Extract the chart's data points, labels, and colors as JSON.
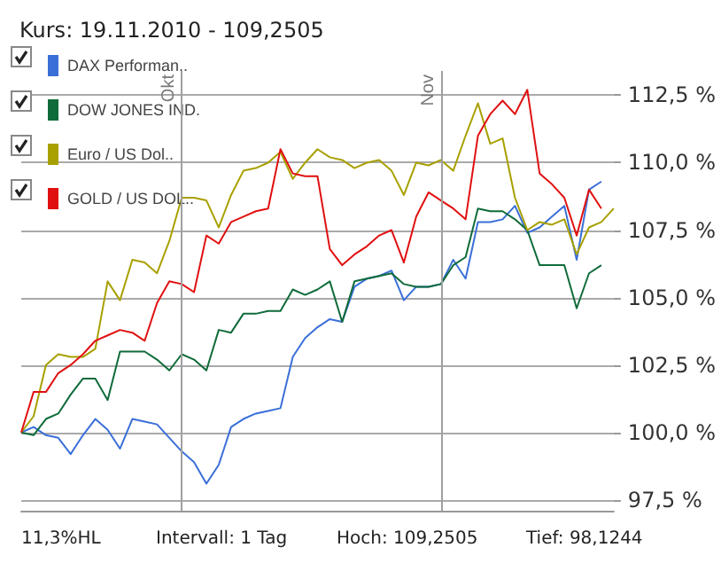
{
  "chart_data": {
    "type": "line",
    "title": "Kurs: 19.11.2010 - 109,2505",
    "annotations": [
      "Okt",
      "Nov",
      "11,3%HL",
      "Intervall: 1 Tag",
      "Hoch: 109,2505",
      "Tief: 98,1244"
    ],
    "categories": [
      null,
      null,
      null,
      null,
      null,
      null,
      null,
      null,
      null,
      null,
      null,
      null,
      null,
      null,
      null,
      null,
      null,
      null,
      null,
      null,
      null,
      null,
      null,
      null,
      null,
      null,
      null,
      null,
      null,
      null,
      null,
      null,
      null,
      null,
      null,
      null,
      null,
      null,
      null,
      null,
      null,
      null,
      null,
      null,
      null,
      null,
      null,
      null,
      null
    ],
    "series": [
      {
        "name": "DAX Performan..",
        "color": "#3a6fd8",
        "values": [
          100.0,
          100.2,
          99.9,
          99.8,
          99.2,
          99.9,
          100.5,
          100.1,
          99.4,
          100.5,
          100.4,
          100.3,
          99.8,
          99.3,
          98.9,
          98.1,
          98.8,
          100.2,
          100.5,
          100.7,
          100.8,
          100.9,
          102.8,
          103.5,
          103.9,
          104.2,
          104.1,
          105.4,
          105.7,
          105.8,
          106.0,
          104.9,
          105.4,
          105.4,
          105.5,
          106.4,
          105.7,
          107.8,
          107.8,
          107.9,
          108.4,
          107.4,
          107.6,
          108.0,
          108.4,
          106.4,
          109.0,
          109.3,
          null
        ]
      },
      {
        "name": "DOW JONES IND.",
        "color": "#0f6b3a",
        "values": [
          100.0,
          99.9,
          100.5,
          100.7,
          101.4,
          102.0,
          102.0,
          101.2,
          103.0,
          103.0,
          103.0,
          102.7,
          102.3,
          102.9,
          102.7,
          102.3,
          103.8,
          103.7,
          104.4,
          104.4,
          104.5,
          104.5,
          105.3,
          105.1,
          105.3,
          105.6,
          104.1,
          105.6,
          105.7,
          105.8,
          105.9,
          105.5,
          105.4,
          105.4,
          105.5,
          106.2,
          106.5,
          108.3,
          108.2,
          108.2,
          107.9,
          107.5,
          106.2,
          106.2,
          106.2,
          104.6,
          105.9,
          106.2,
          null
        ]
      },
      {
        "name": "Euro / US Dol..",
        "color": "#a8a000",
        "values": [
          100.0,
          100.6,
          102.5,
          102.9,
          102.8,
          102.8,
          103.1,
          105.6,
          104.9,
          106.4,
          106.3,
          105.9,
          107.1,
          108.7,
          108.7,
          108.6,
          107.6,
          108.8,
          109.7,
          109.8,
          110.0,
          110.4,
          109.4,
          110.0,
          110.5,
          110.2,
          110.1,
          109.8,
          110.0,
          110.1,
          109.7,
          108.8,
          110.0,
          109.9,
          110.1,
          109.7,
          111.0,
          112.2,
          110.7,
          110.9,
          108.7,
          107.5,
          107.8,
          107.7,
          107.9,
          106.6,
          107.6,
          107.8,
          108.3
        ]
      },
      {
        "name": "GOLD / US DOL..",
        "color": "#e01010",
        "values": [
          100.0,
          101.5,
          101.5,
          102.2,
          102.5,
          102.9,
          103.4,
          103.6,
          103.8,
          103.7,
          103.4,
          104.8,
          105.6,
          105.5,
          105.2,
          107.3,
          107.0,
          107.8,
          108.0,
          108.2,
          108.3,
          110.5,
          109.6,
          109.5,
          109.5,
          106.8,
          106.2,
          106.6,
          106.9,
          107.3,
          107.5,
          106.3,
          108.0,
          108.9,
          108.6,
          108.3,
          107.9,
          111.0,
          111.8,
          112.3,
          111.8,
          112.7,
          109.6,
          109.2,
          108.7,
          107.3,
          109.0,
          108.3,
          null
        ]
      }
    ],
    "ylim": [
      97.1,
      113.4
    ],
    "yticks": [
      {
        "value": 97.5,
        "label": "97,5 %"
      },
      {
        "value": 100,
        "label": "100,0 %"
      },
      {
        "value": 102.5,
        "label": "102,5 %"
      },
      {
        "value": 105,
        "label": "105,0 %"
      },
      {
        "value": 107.5,
        "label": "107,5 %"
      },
      {
        "value": 110,
        "label": "110,0 %"
      },
      {
        "value": 112.5,
        "label": "112,5 %"
      }
    ],
    "grid": "y",
    "legend": "top left",
    "tick_labels": "y",
    "line_style": "solid"
  }
}
